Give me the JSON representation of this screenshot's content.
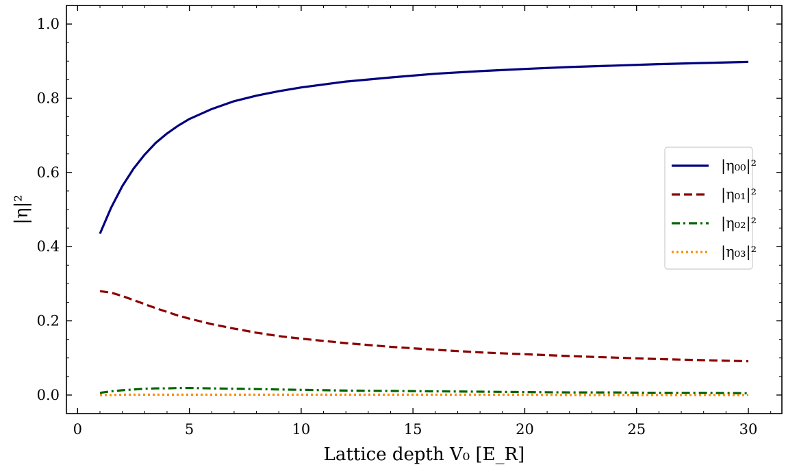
{
  "chart_data": {
    "type": "line",
    "xlabel": "Lattice depth V₀ [E_R]",
    "ylabel": "|η|²",
    "xlim": [
      -0.5,
      31.5
    ],
    "ylim": [
      -0.05,
      1.05
    ],
    "xticks": [
      0,
      5,
      10,
      15,
      20,
      25,
      30
    ],
    "yticks": [
      0.0,
      0.2,
      0.4,
      0.6,
      0.8,
      1.0
    ],
    "xtick_labels": [
      "0",
      "5",
      "10",
      "15",
      "20",
      "25",
      "30"
    ],
    "ytick_labels": [
      "0.0",
      "0.2",
      "0.4",
      "0.6",
      "0.8",
      "1.0"
    ],
    "grid": false,
    "legend_placement": "center-right",
    "x": [
      1,
      1.5,
      2,
      2.5,
      3,
      3.5,
      4,
      4.5,
      5,
      6,
      7,
      8,
      9,
      10,
      12,
      14,
      16,
      18,
      20,
      22,
      24,
      26,
      28,
      30
    ],
    "series": [
      {
        "name": "|η₀₀|²",
        "color": "#000080",
        "dash": "solid",
        "values": [
          0.435,
          0.505,
          0.563,
          0.61,
          0.648,
          0.68,
          0.705,
          0.726,
          0.744,
          0.771,
          0.792,
          0.807,
          0.819,
          0.829,
          0.845,
          0.856,
          0.866,
          0.873,
          0.879,
          0.884,
          0.888,
          0.892,
          0.895,
          0.898
        ]
      },
      {
        "name": "|η₀₁|²",
        "color": "#8b0000",
        "dash": "dashed",
        "values": [
          0.28,
          0.276,
          0.267,
          0.256,
          0.245,
          0.234,
          0.224,
          0.214,
          0.206,
          0.191,
          0.179,
          0.168,
          0.159,
          0.152,
          0.14,
          0.13,
          0.122,
          0.115,
          0.11,
          0.105,
          0.101,
          0.097,
          0.094,
          0.091
        ]
      },
      {
        "name": "|η₀₂|²",
        "color": "#006400",
        "dash": "dashdot",
        "values": [
          0.006,
          0.01,
          0.013,
          0.015,
          0.017,
          0.018,
          0.018,
          0.019,
          0.019,
          0.018,
          0.017,
          0.016,
          0.015,
          0.014,
          0.012,
          0.011,
          0.01,
          0.009,
          0.008,
          0.007,
          0.007,
          0.006,
          0.006,
          0.005
        ]
      },
      {
        "name": "|η₀₃|²",
        "color": "#ff8c00",
        "dash": "dotted",
        "values": [
          0.0,
          0.0,
          0.001,
          0.001,
          0.001,
          0.001,
          0.001,
          0.001,
          0.001,
          0.001,
          0.001,
          0.001,
          0.001,
          0.001,
          0.001,
          0.001,
          0.001,
          0.001,
          0.001,
          0.0,
          0.0,
          0.0,
          0.0,
          0.0
        ]
      }
    ]
  }
}
